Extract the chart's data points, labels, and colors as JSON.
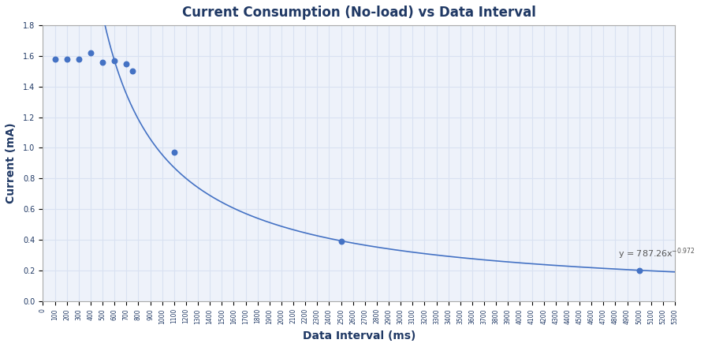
{
  "title": "Current Consumption (No-load) vs Data Interval",
  "xlabel": "Data Interval (ms)",
  "ylabel": "Current (mA)",
  "equation": "y = 787.26x",
  "exponent": "-0.972",
  "equation_x": 4820,
  "equation_y": 0.31,
  "curve_coeff_a": 787.26,
  "curve_coeff_b": -0.972,
  "data_points": [
    [
      100,
      1.58
    ],
    [
      200,
      1.58
    ],
    [
      300,
      1.58
    ],
    [
      400,
      1.62
    ],
    [
      500,
      1.56
    ],
    [
      600,
      1.57
    ],
    [
      700,
      1.55
    ],
    [
      750,
      1.5
    ],
    [
      1100,
      0.97
    ],
    [
      2500,
      0.39
    ],
    [
      5000,
      0.2
    ]
  ],
  "xlim": [
    0,
    5300
  ],
  "ylim": [
    0,
    1.8
  ],
  "xtick_step": 100,
  "ytick_step": 0.2,
  "line_color": "#4472C4",
  "dot_color": "#4472C4",
  "grid_color": "#D9E1F2",
  "bg_color": "#FFFFFF",
  "border_color": "#2F4F7F",
  "title_color": "#1F3864",
  "axis_label_color": "#1F3864",
  "figsize": [
    8.98,
    4.4
  ],
  "dpi": 100
}
